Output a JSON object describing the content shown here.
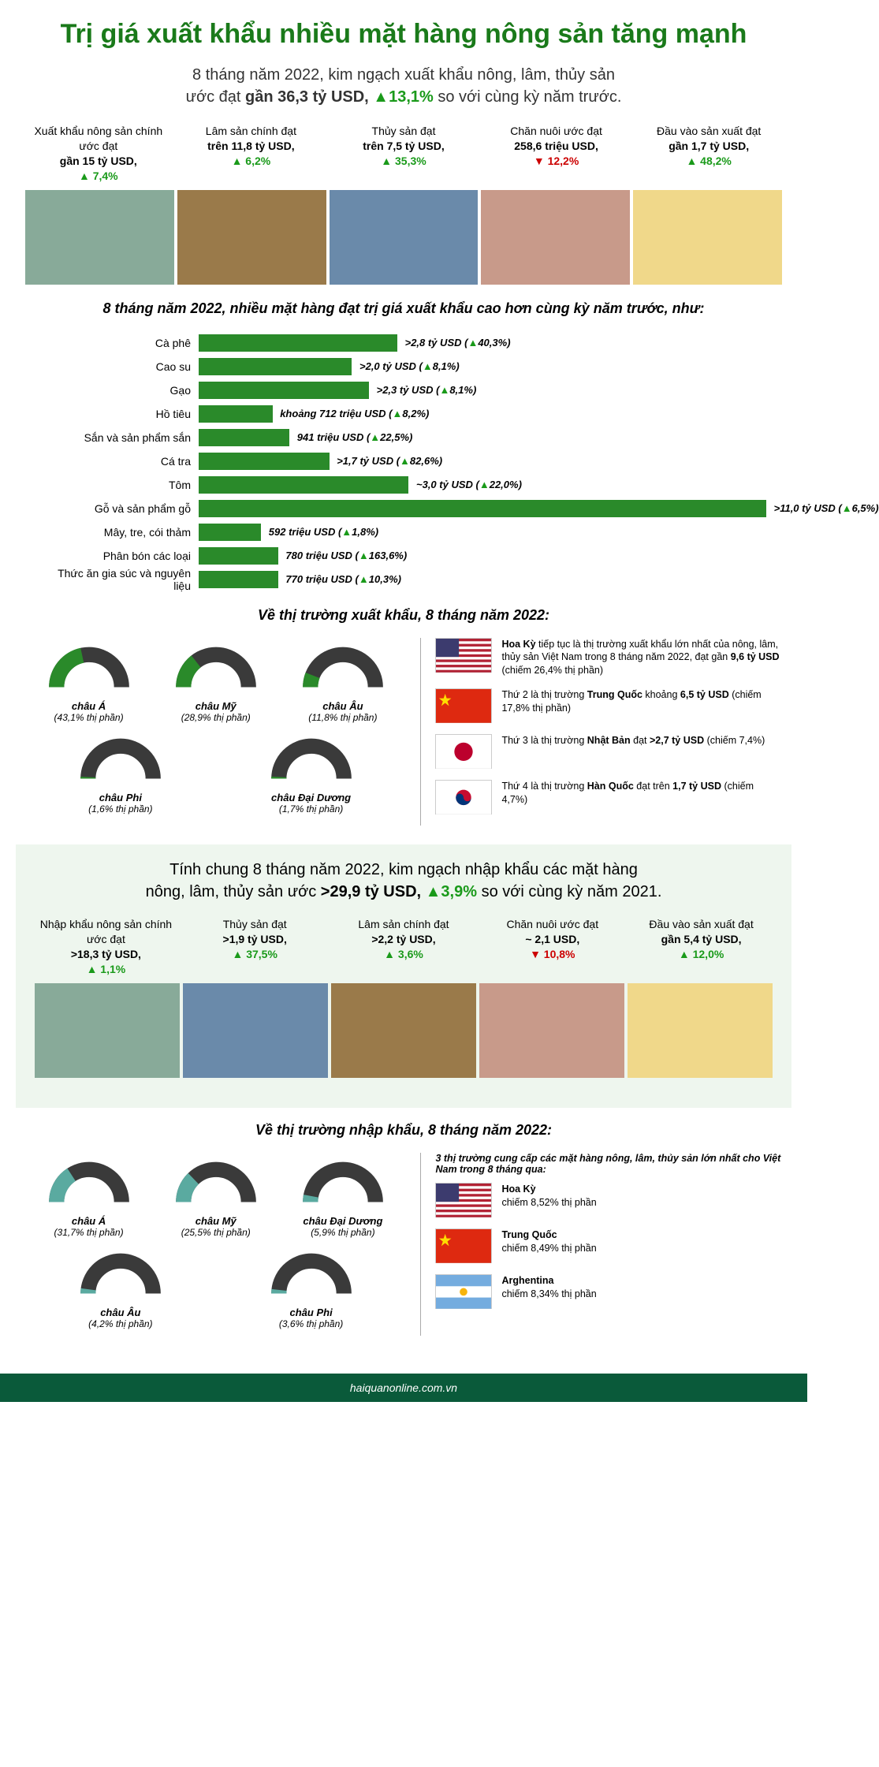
{
  "colors": {
    "green": "#1a9a1a",
    "bar": "#2a8a2a",
    "dark": "#3a3a3a",
    "red": "#c00",
    "teal": "#5aaaa0",
    "footer_bg": "#0a5a3a"
  },
  "title": "Trị giá xuất khẩu nhiều mặt hàng nông sản tăng mạnh",
  "intro_html": "8 tháng năm 2022, kim ngạch xuất khẩu nông, lâm, thủy sản<br>ước đạt <b>gần 36,3 tỷ USD,</b> <span class='up'>▲13,1%</span> so với cùng kỳ năm trước.",
  "export_cols": [
    {
      "text": "Xuất khẩu nông sản chính ước đạt",
      "val": "gần 15 tỷ USD,",
      "pct": "▲ 7,4%",
      "dir": "up",
      "img": "veg"
    },
    {
      "text": "Lâm sản chính đạt",
      "val": "trên 11,8 tỷ USD,",
      "pct": "▲ 6,2%",
      "dir": "up",
      "img": "wood"
    },
    {
      "text": "Thủy sản đạt",
      "val": "trên 7,5 tỷ USD,",
      "pct": "▲ 35,3%",
      "dir": "up",
      "img": "fish"
    },
    {
      "text": "Chăn nuôi ước đạt",
      "val": "258,6 triệu USD,",
      "pct": "▼ 12,2%",
      "dir": "down",
      "img": "meat"
    },
    {
      "text": "Đầu vào sản xuất đạt",
      "val": "gần 1,7 tỷ USD,",
      "pct": "▲ 48,2%",
      "dir": "up",
      "img": "fact"
    }
  ],
  "bar_head": "8 tháng năm 2022, nhiều mặt hàng đạt trị giá xuất khẩu cao hơn cùng kỳ năm trước, như:",
  "bars": [
    {
      "label": "Cà phê",
      "w": 35,
      "val": ">2,8 tỷ USD (▲40,3%)"
    },
    {
      "label": "Cao su",
      "w": 27,
      "val": ">2,0 tỷ USD (▲8,1%)"
    },
    {
      "label": "Gạo",
      "w": 30,
      "val": ">2,3 tỷ USD (▲8,1%)"
    },
    {
      "label": "Hồ tiêu",
      "w": 13,
      "val": "khoảng 712 triệu USD (▲8,2%)"
    },
    {
      "label": "Sắn và sản phẩm sắn",
      "w": 16,
      "val": "941 triệu USD (▲22,5%)"
    },
    {
      "label": "Cá tra",
      "w": 23,
      "val": ">1,7 tỷ USD (▲82,6%)"
    },
    {
      "label": "Tôm",
      "w": 37,
      "val": "~3,0 tỷ USD (▲22,0%)"
    },
    {
      "label": "Gỗ và sản phẩm gỗ",
      "w": 100,
      "val": ">11,0 tỷ USD (▲6,5%)"
    },
    {
      "label": "Mây, tre, cói thảm",
      "w": 11,
      "val": "592 triệu USD (▲1,8%)"
    },
    {
      "label": "Phân bón các loại",
      "w": 14,
      "val": "780 triệu USD (▲163,6%)"
    },
    {
      "label": "Thức ăn gia súc và nguyên liệu",
      "w": 14,
      "val": "770 triệu USD (▲10,3%)"
    }
  ],
  "ex_market_head": "Về thị trường xuất khẩu, 8 tháng năm 2022:",
  "ex_donuts_row1": [
    {
      "name": "châu Á",
      "pct": 43.1,
      "label": "(43,1% thị phần)",
      "color": "#2a8a2a"
    },
    {
      "name": "châu Mỹ",
      "pct": 28.9,
      "label": "(28,9% thị phần)",
      "color": "#2a8a2a"
    },
    {
      "name": "châu Âu",
      "pct": 11.8,
      "label": "(11,8% thị phần)",
      "color": "#2a8a2a"
    }
  ],
  "ex_donuts_row2": [
    {
      "name": "châu Phi",
      "pct": 1.6,
      "label": "(1,6% thị phần)",
      "color": "#2a8a2a"
    },
    {
      "name": "châu Đại Dương",
      "pct": 1.7,
      "label": "(1,7% thị phần)",
      "color": "#2a8a2a"
    }
  ],
  "ex_countries": [
    {
      "flag": "us",
      "text": "<b>Hoa Kỳ</b> tiếp tục là thị trường xuất khẩu lớn nhất của nông, lâm, thủy sản Việt Nam trong 8 tháng năm 2022, đạt gần <b>9,6 tỷ USD</b> (chiếm 26,4% thị phần)"
    },
    {
      "flag": "cn",
      "text": "Thứ 2 là thị trường <b>Trung Quốc</b> khoảng <b>6,5 tỷ USD</b> (chiếm 17,8% thị phần)"
    },
    {
      "flag": "jp",
      "text": "Thứ 3 là thị trường <b>Nhật Bản</b> đạt <b>>2,7 tỷ USD</b> (chiếm 7,4%)"
    },
    {
      "flag": "kr",
      "text": "Thứ 4 là thị trường <b>Hàn Quốc</b> đạt trên <b>1,7 tỷ USD</b> (chiếm 4,7%)"
    }
  ],
  "import_intro_html": "Tính chung 8 tháng năm 2022, kim ngạch nhập khẩu các mặt hàng<br>nông, lâm, thủy sản ước <b>>29,9 tỷ USD,</b> <span class='up'>▲3,9%</span> so với cùng kỳ năm 2021.",
  "import_cols": [
    {
      "text": "Nhập khẩu nông sản chính ước đạt",
      "val": ">18,3 tỷ USD,",
      "pct": "▲ 1,1%",
      "dir": "up",
      "img": "veg"
    },
    {
      "text": "Thủy sản đạt",
      "val": ">1,9 tỷ USD,",
      "pct": "▲ 37,5%",
      "dir": "up",
      "img": "fish"
    },
    {
      "text": "Lâm sản chính đạt",
      "val": ">2,2 tỷ USD,",
      "pct": "▲ 3,6%",
      "dir": "up",
      "img": "wood"
    },
    {
      "text": "Chăn nuôi ước đạt",
      "val": "~ 2,1 USD,",
      "pct": "▼ 10,8%",
      "dir": "down",
      "img": "meat"
    },
    {
      "text": "Đầu vào sản xuất đạt",
      "val": "gần 5,4 tỷ USD,",
      "pct": "▲ 12,0%",
      "dir": "up",
      "img": "fact"
    }
  ],
  "im_market_head": "Về thị trường nhập khẩu, 8 tháng năm 2022:",
  "im_sub": "3 thị trường cung cấp các mặt hàng nông, lâm, thủy sản lớn nhất cho Việt Nam trong 8 tháng qua:",
  "im_donuts_row1": [
    {
      "name": "châu Á",
      "pct": 31.7,
      "label": "(31,7% thị phần)",
      "color": "#5aaaa0"
    },
    {
      "name": "châu Mỹ",
      "pct": 25.5,
      "label": "(25,5% thị phần)",
      "color": "#5aaaa0"
    },
    {
      "name": "châu Đại Dương",
      "pct": 5.9,
      "label": "(5,9% thị phần)",
      "color": "#5aaaa0"
    }
  ],
  "im_donuts_row2": [
    {
      "name": "châu Âu",
      "pct": 4.2,
      "label": "(4,2% thị phần)",
      "color": "#5aaaa0"
    },
    {
      "name": "châu Phi",
      "pct": 3.6,
      "label": "(3,6% thị phần)",
      "color": "#5aaaa0"
    }
  ],
  "im_countries": [
    {
      "flag": "us",
      "text": "<b>Hoa Kỳ</b><br>chiếm 8,52% thị phần"
    },
    {
      "flag": "cn",
      "text": "<b>Trung Quốc</b><br>chiếm 8,49% thị phần"
    },
    {
      "flag": "ar",
      "text": "<b>Arghentina</b><br>chiếm 8,34% thị phần"
    }
  ],
  "footer": "haiquanonline.com.vn"
}
